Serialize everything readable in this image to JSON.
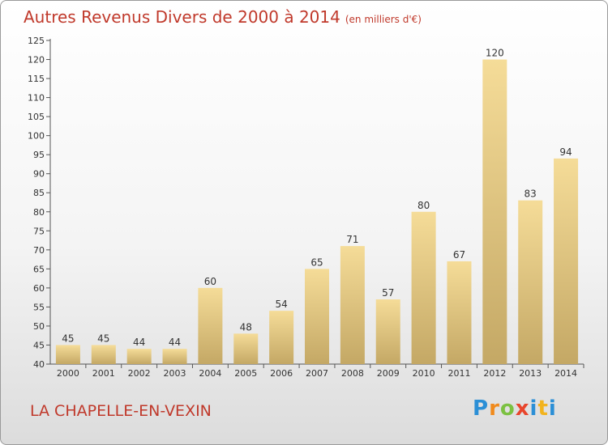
{
  "title": "Autres Revenus Divers de 2000 à 2014",
  "unit_note": "(en milliers d'€)",
  "commune": "LA CHAPELLE-EN-VEXIN",
  "logo_text": "Proxiti",
  "colors": {
    "title": "#c0392b",
    "bar_top": "#f5dc98",
    "bar_bottom": "#c4a865"
  },
  "chart_data": {
    "type": "bar",
    "title": "Autres Revenus Divers de 2000 à 2014",
    "categories": [
      "2000",
      "2001",
      "2002",
      "2003",
      "2004",
      "2005",
      "2006",
      "2007",
      "2008",
      "2009",
      "2010",
      "2011",
      "2012",
      "2013",
      "2014"
    ],
    "values": [
      45,
      45,
      44,
      44,
      60,
      48,
      54,
      65,
      71,
      57,
      80,
      67,
      120,
      83,
      94
    ],
    "xlabel": "",
    "ylabel": "",
    "ylim": [
      40,
      125
    ],
    "yticks": [
      40,
      45,
      50,
      55,
      60,
      65,
      70,
      75,
      80,
      85,
      90,
      95,
      100,
      105,
      110,
      115,
      120,
      125
    ],
    "grid": false,
    "legend": "none",
    "data_labels": true
  }
}
